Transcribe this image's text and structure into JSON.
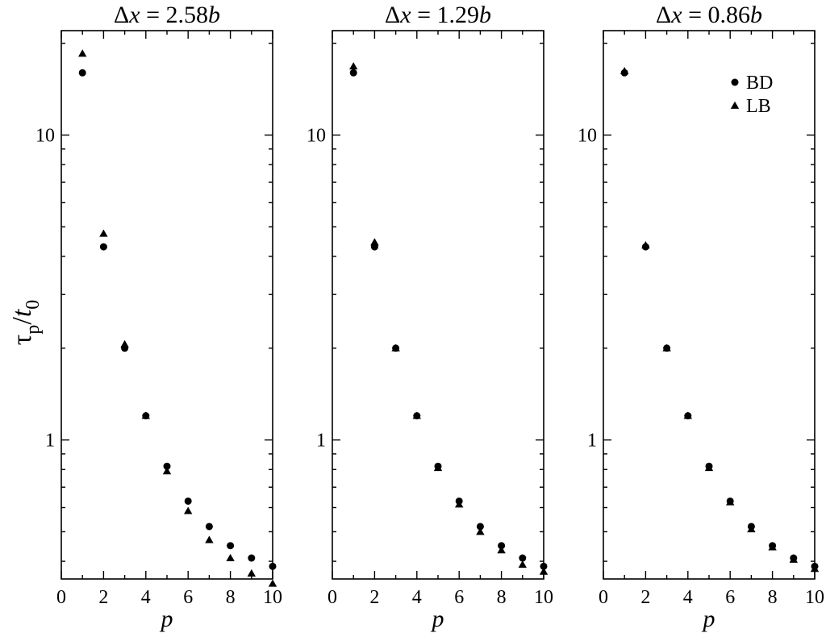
{
  "figure": {
    "ylabel": {
      "tau": "τ",
      "p_sub": "p",
      "slash": "/",
      "t": "t",
      "zero_sub": "0"
    }
  },
  "chart_data": [
    {
      "type": "scatter",
      "title": "Δx = 2.58b",
      "title_parts": {
        "delta": "Δ",
        "x": "x",
        "value": " = 2.58",
        "b": "b"
      },
      "xlabel": "p",
      "ylabel": "τp/t0",
      "xlim": [
        0,
        10
      ],
      "ylim": [
        0.35,
        22
      ],
      "y_scale": "log",
      "x_ticks": [
        0,
        2,
        4,
        6,
        8,
        10
      ],
      "y_tick_labels": [
        "1",
        "10"
      ],
      "legend": null,
      "series": [
        {
          "name": "BD",
          "marker": "circle",
          "x": [
            1,
            2,
            3,
            4,
            5,
            6,
            7,
            8,
            9,
            10
          ],
          "y": [
            16.0,
            4.3,
            2.0,
            1.2,
            0.82,
            0.63,
            0.52,
            0.45,
            0.41,
            0.385
          ]
        },
        {
          "name": "LB",
          "marker": "triangle",
          "x": [
            1,
            2,
            3,
            4,
            5,
            6,
            7,
            8,
            9,
            10
          ],
          "y": [
            18.5,
            4.75,
            2.06,
            1.2,
            0.79,
            0.585,
            0.47,
            0.41,
            0.365,
            0.338
          ]
        }
      ]
    },
    {
      "type": "scatter",
      "title": "Δx = 1.29b",
      "title_parts": {
        "delta": "Δ",
        "x": "x",
        "value": " = 1.29",
        "b": "b"
      },
      "xlabel": "p",
      "ylabel": "τp/t0",
      "xlim": [
        0,
        10
      ],
      "ylim": [
        0.35,
        22
      ],
      "y_scale": "log",
      "x_ticks": [
        0,
        2,
        4,
        6,
        8,
        10
      ],
      "y_tick_labels": [
        "1",
        "10"
      ],
      "legend": null,
      "series": [
        {
          "name": "BD",
          "marker": "circle",
          "x": [
            1,
            2,
            3,
            4,
            5,
            6,
            7,
            8,
            9,
            10
          ],
          "y": [
            16.0,
            4.3,
            2.0,
            1.2,
            0.82,
            0.63,
            0.52,
            0.45,
            0.41,
            0.385
          ]
        },
        {
          "name": "LB",
          "marker": "triangle",
          "x": [
            1,
            2,
            3,
            4,
            5,
            6,
            7,
            8,
            9,
            10
          ],
          "y": [
            16.8,
            4.45,
            2.0,
            1.2,
            0.81,
            0.615,
            0.5,
            0.435,
            0.39,
            0.37
          ]
        }
      ]
    },
    {
      "type": "scatter",
      "title": "Δx = 0.86b",
      "title_parts": {
        "delta": "Δ",
        "x": "x",
        "value": " = 0.86",
        "b": "b"
      },
      "xlabel": "p",
      "ylabel": "τp/t0",
      "xlim": [
        0,
        10
      ],
      "ylim": [
        0.35,
        22
      ],
      "y_scale": "log",
      "x_ticks": [
        0,
        2,
        4,
        6,
        8,
        10
      ],
      "y_tick_labels": [
        "1",
        "10"
      ],
      "legend": {
        "position": "top-right",
        "entries": [
          "BD",
          "LB"
        ]
      },
      "series": [
        {
          "name": "BD",
          "marker": "circle",
          "x": [
            1,
            2,
            3,
            4,
            5,
            6,
            7,
            8,
            9,
            10
          ],
          "y": [
            16.0,
            4.3,
            2.0,
            1.2,
            0.82,
            0.63,
            0.52,
            0.45,
            0.41,
            0.385
          ]
        },
        {
          "name": "LB",
          "marker": "triangle",
          "x": [
            1,
            2,
            3,
            4,
            5,
            6,
            7,
            8,
            9,
            10
          ],
          "y": [
            16.2,
            4.35,
            2.0,
            1.2,
            0.81,
            0.625,
            0.51,
            0.445,
            0.405,
            0.378
          ]
        }
      ]
    }
  ]
}
